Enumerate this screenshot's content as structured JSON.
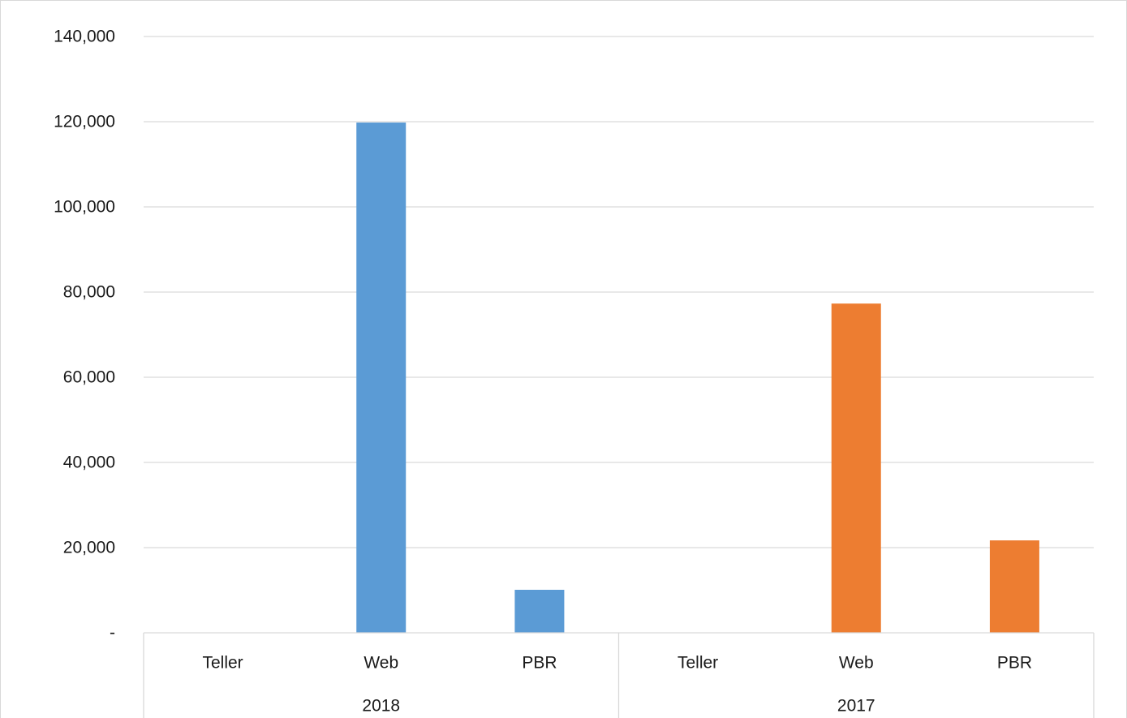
{
  "chart_data": {
    "type": "bar",
    "title": "",
    "xlabel": "",
    "ylabel": "",
    "ylim": [
      0,
      140000
    ],
    "y_ticks": [
      {
        "value": 0,
        "label": "-"
      },
      {
        "value": 20000,
        "label": "20,000"
      },
      {
        "value": 40000,
        "label": "40,000"
      },
      {
        "value": 60000,
        "label": "60,000"
      },
      {
        "value": 80000,
        "label": "80,000"
      },
      {
        "value": 100000,
        "label": "100,000"
      },
      {
        "value": 120000,
        "label": "120,000"
      },
      {
        "value": 140000,
        "label": "140,000"
      }
    ],
    "grid": true,
    "legend": "none",
    "groups": [
      {
        "label": "2018",
        "color": "#5b9bd5",
        "categories": [
          "Teller",
          "Web",
          "PBR"
        ],
        "values": [
          0,
          119800,
          10100
        ]
      },
      {
        "label": "2017",
        "color": "#ed7d31",
        "categories": [
          "Teller",
          "Web",
          "PBR"
        ],
        "values": [
          0,
          77300,
          21700
        ]
      }
    ]
  }
}
